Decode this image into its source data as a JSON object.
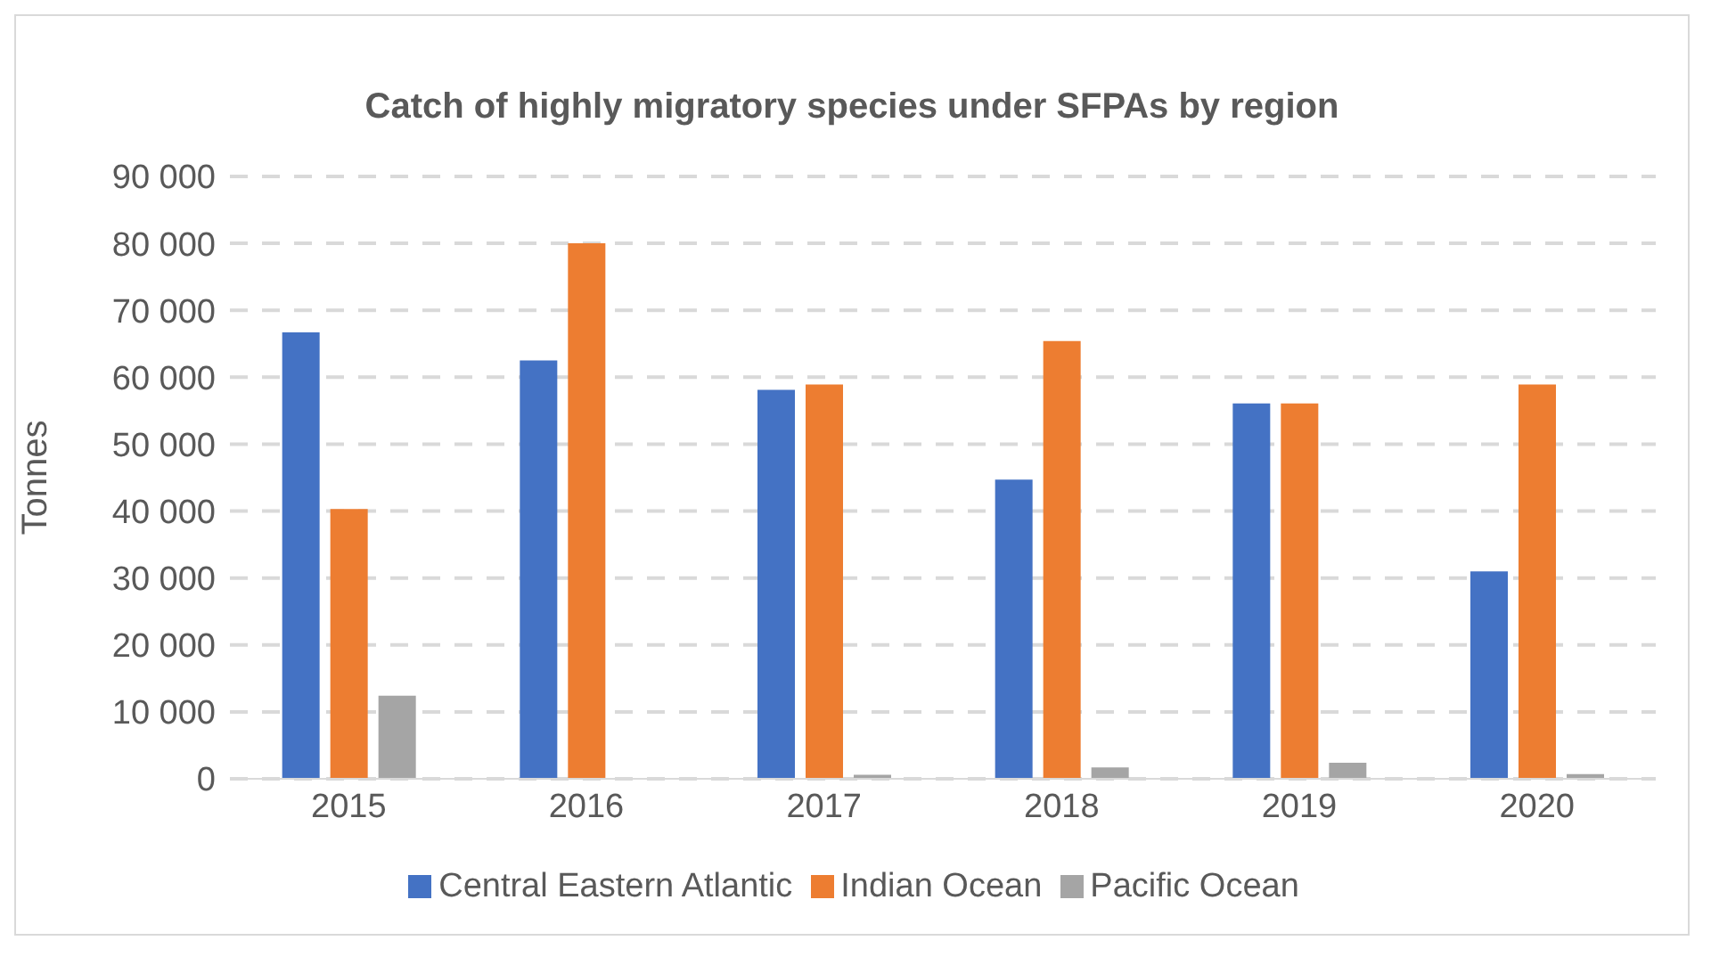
{
  "chart_data": {
    "type": "bar",
    "title": "Catch of highly migratory species under SFPAs by region",
    "ylabel": "Tonnes",
    "categories": [
      "2015",
      "2016",
      "2017",
      "2018",
      "2019",
      "2020"
    ],
    "series": [
      {
        "name": "Central Eastern Atlantic",
        "color": "#4472c4",
        "values": [
          66700,
          62500,
          58100,
          44700,
          56100,
          31000
        ]
      },
      {
        "name": "Indian Ocean",
        "color": "#ed7d31",
        "values": [
          40300,
          80000,
          58900,
          65400,
          56100,
          58900
        ]
      },
      {
        "name": "Pacific Ocean",
        "color": "#a5a5a5",
        "values": [
          12400,
          0,
          600,
          1700,
          2400,
          700
        ]
      }
    ],
    "ylim": [
      0,
      90000
    ],
    "yticks": [
      {
        "value": 0,
        "label": "0"
      },
      {
        "value": 10000,
        "label": "10 000"
      },
      {
        "value": 20000,
        "label": "20 000"
      },
      {
        "value": 30000,
        "label": "30 000"
      },
      {
        "value": 40000,
        "label": "40 000"
      },
      {
        "value": 50000,
        "label": "50 000"
      },
      {
        "value": 60000,
        "label": "60 000"
      },
      {
        "value": 70000,
        "label": "70 000"
      },
      {
        "value": 80000,
        "label": "80 000"
      },
      {
        "value": 90000,
        "label": "90 000"
      }
    ],
    "grid": "y",
    "legend": "bottom"
  }
}
